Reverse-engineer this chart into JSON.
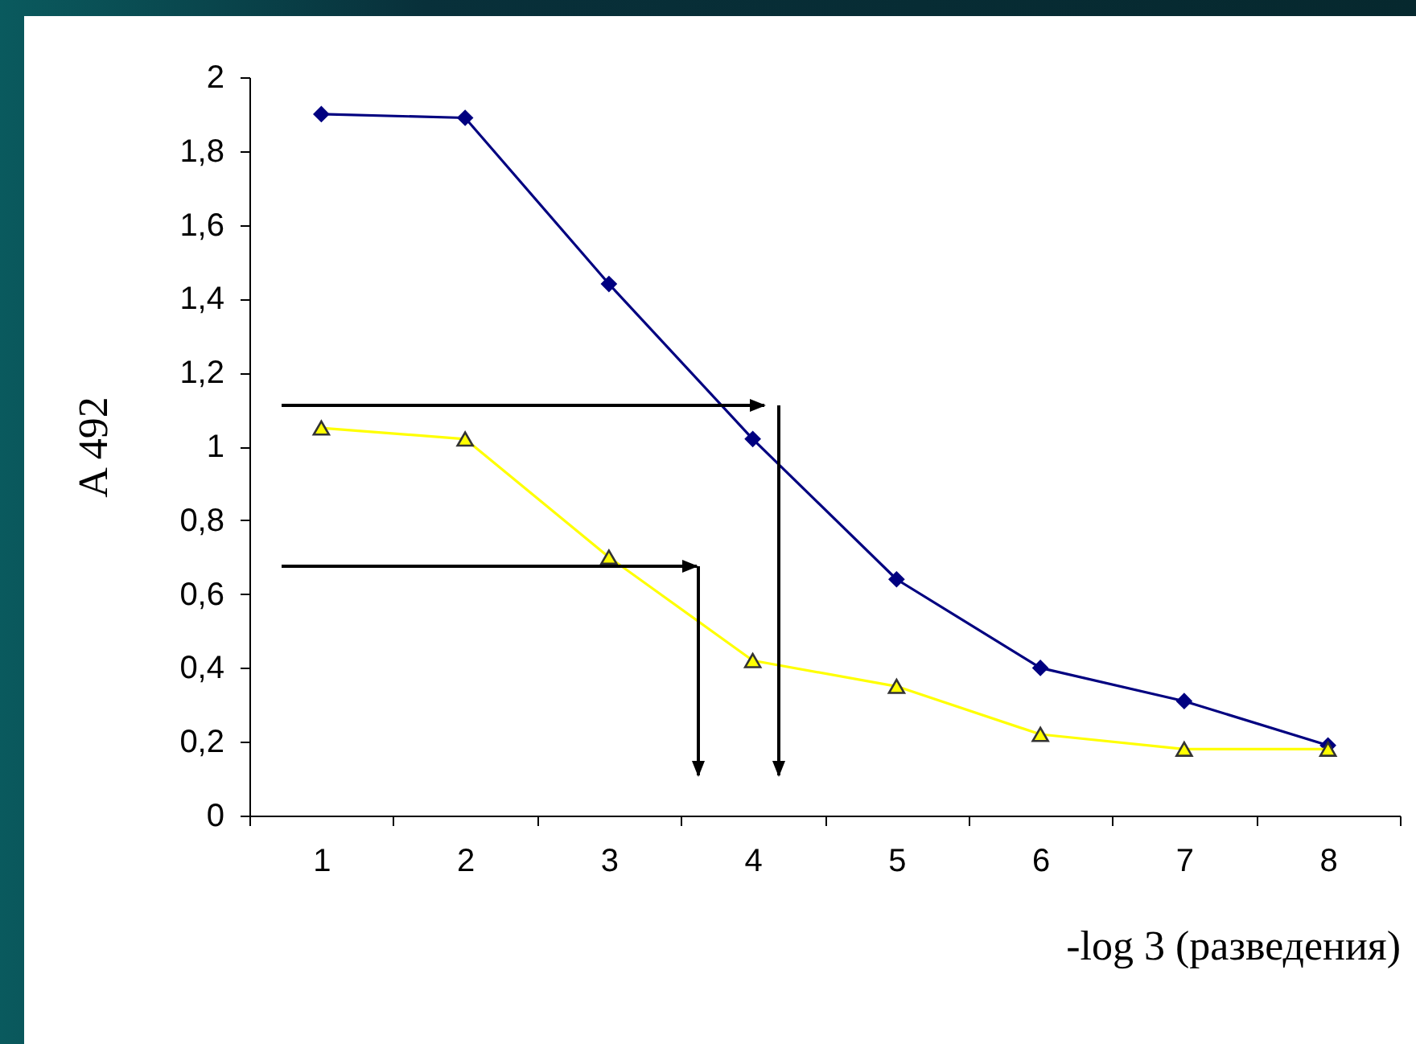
{
  "chart_data": {
    "type": "line",
    "xlabel": "-log 3 (разведения)",
    "ylabel": "A 492",
    "categories": [
      "1",
      "2",
      "3",
      "4",
      "5",
      "6",
      "7",
      "8"
    ],
    "series": [
      {
        "color": "#000080",
        "marker": "diamond",
        "values": [
          1.9,
          1.89,
          1.44,
          1.02,
          0.64,
          0.4,
          0.31,
          0.19
        ]
      },
      {
        "color": "#ffff00",
        "marker": "triangle",
        "values": [
          1.05,
          1.02,
          0.7,
          0.42,
          0.35,
          0.22,
          0.18,
          0.18
        ]
      }
    ],
    "ylim": [
      0,
      2
    ],
    "yticks": [
      {
        "value": 0,
        "label": "0"
      },
      {
        "value": 0.2,
        "label": "0,2"
      },
      {
        "value": 0.4,
        "label": "0,4"
      },
      {
        "value": 0.6,
        "label": "0,6"
      },
      {
        "value": 0.8,
        "label": "0,8"
      },
      {
        "value": 1,
        "label": "1"
      },
      {
        "value": 1.2,
        "label": "1,2"
      },
      {
        "value": 1.4,
        "label": "1,4"
      },
      {
        "value": 1.6,
        "label": "1,6"
      },
      {
        "value": 1.8,
        "label": "1,8"
      },
      {
        "value": 2,
        "label": "2"
      }
    ],
    "grid": false,
    "legend": false
  }
}
